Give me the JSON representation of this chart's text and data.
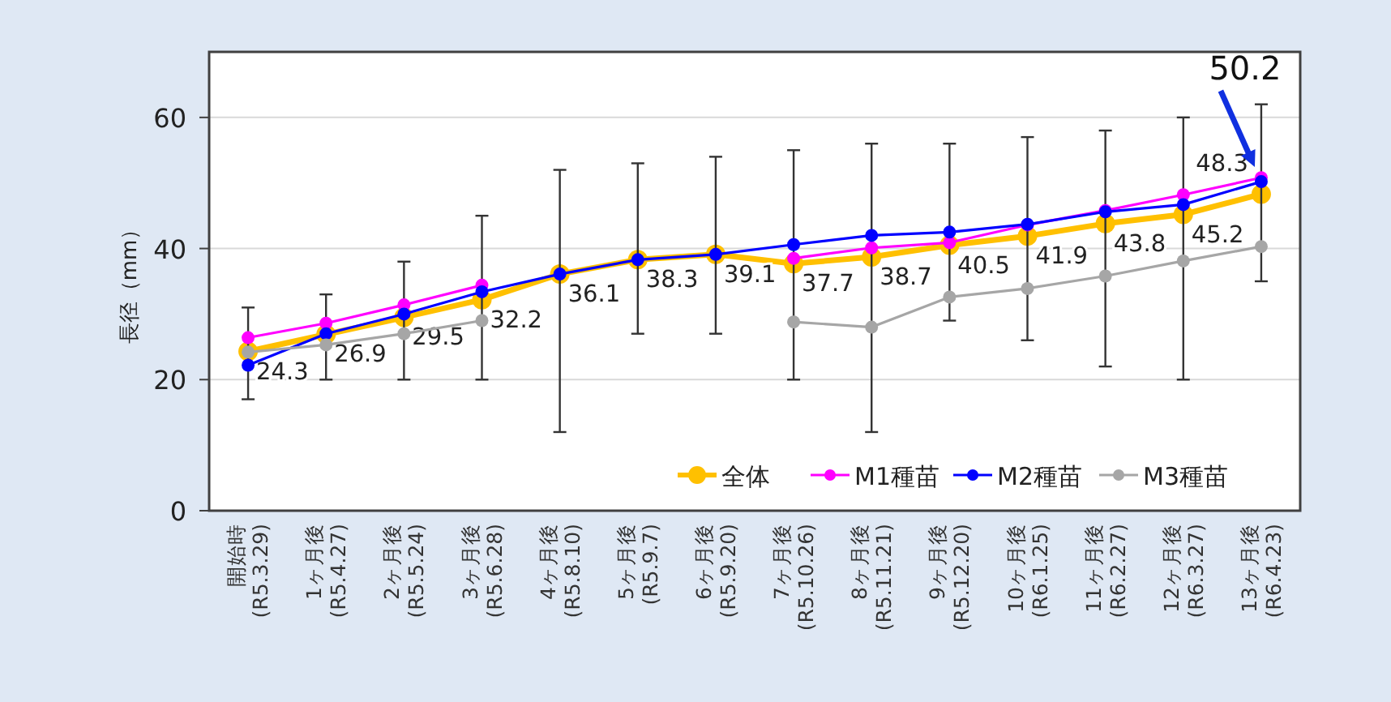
{
  "chart_data": {
    "type": "line",
    "ylabel": "長径（mm）",
    "categories": [
      "開始時\n(R5.3.29)",
      "1ヶ月後\n(R5.4.27)",
      "2ヶ月後\n(R5.5.24)",
      "3ヶ月後\n(R5.6.28)",
      "4ヶ月後\n(R5.8.10)",
      "5ヶ月後\n(R5.9.7)",
      "6ヶ月後\n(R5.9.20)",
      "7ヶ月後\n(R5.10.26)",
      "8ヶ月後\n(R5.11.21)",
      "9ヶ月後\n(R5.12.20)",
      "10ヶ月後\n(R6.1.25)",
      "11ヶ月後\n(R6.2.27)",
      "12ヶ月後\n(R6.3.27)",
      "13ヶ月後\n(R6.4.23)"
    ],
    "series": [
      {
        "name": "全体",
        "color": "#ffc000",
        "data_labels": true,
        "values": [
          24.3,
          26.9,
          29.5,
          32.2,
          36.1,
          38.3,
          39.1,
          37.7,
          38.7,
          40.5,
          41.9,
          43.8,
          45.2,
          48.3
        ],
        "errors": [
          [
            17,
            31
          ],
          [
            20,
            33
          ],
          [
            20,
            38
          ],
          [
            20,
            45
          ],
          [
            12,
            52
          ],
          [
            27,
            53
          ],
          [
            27,
            54
          ],
          [
            20,
            55
          ],
          [
            12,
            56
          ],
          [
            29,
            56
          ],
          [
            26,
            57
          ],
          [
            22,
            58
          ],
          [
            20,
            60
          ],
          [
            35,
            62
          ]
        ]
      },
      {
        "name": "M1種苗",
        "color": "#ff00ff",
        "values": [
          26.4,
          28.6,
          31.4,
          34.4,
          null,
          null,
          null,
          38.5,
          40.1,
          40.9,
          43.6,
          45.8,
          48.2,
          50.8
        ]
      },
      {
        "name": "M2種苗",
        "color": "#0000ff",
        "values": [
          22.2,
          27.0,
          30.0,
          33.4,
          36.1,
          38.3,
          39.1,
          40.6,
          42.0,
          42.5,
          43.7,
          45.6,
          46.7,
          50.2
        ]
      },
      {
        "name": "M3種苗",
        "color": "#a6a6a6",
        "values": [
          24.2,
          25.3,
          27.0,
          29.0,
          null,
          null,
          null,
          28.8,
          28.0,
          32.6,
          33.9,
          35.8,
          38.1,
          40.3
        ]
      }
    ],
    "ylim": [
      0,
      70
    ],
    "yticks": [
      0,
      20,
      40,
      60
    ],
    "grid": "y",
    "legend": "bottom right",
    "marker": "circle",
    "annotations": [
      {
        "text": "50.2",
        "x": "13ヶ月後\n(R6.4.23)",
        "y": 50.2
      }
    ]
  }
}
